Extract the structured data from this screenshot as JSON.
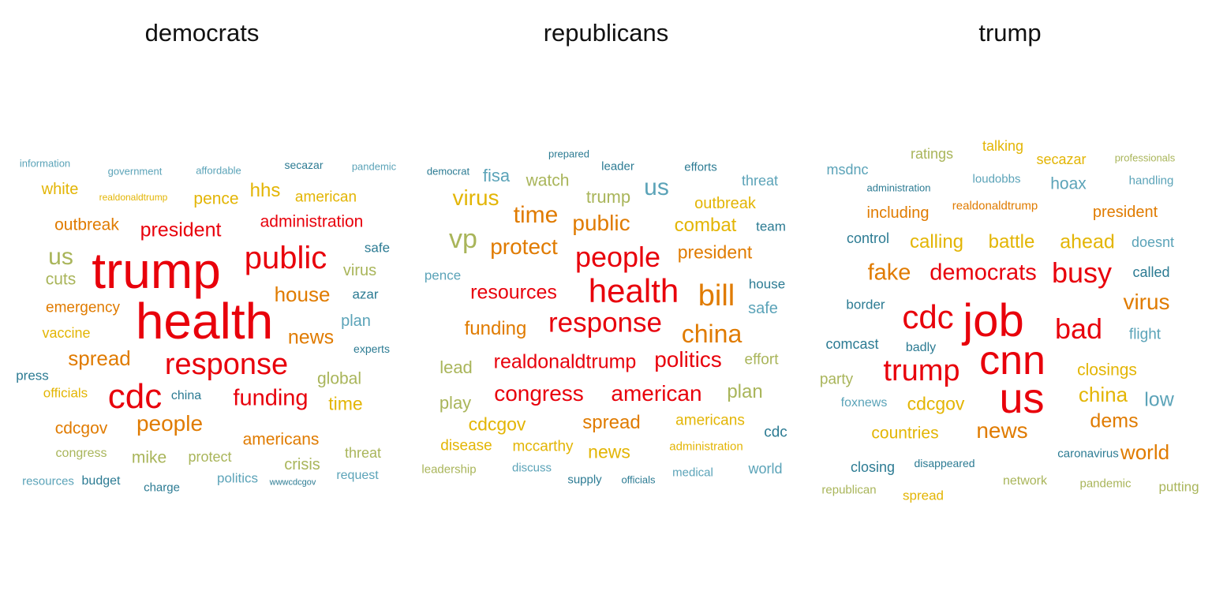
{
  "palette": {
    "red": "#e8000b",
    "orange": "#e07b00",
    "gold": "#e3b505",
    "olive": "#a9b55a",
    "lightblue": "#5ba3b8",
    "teal": "#2c7b93"
  },
  "chart_data": [
    {
      "type": "wordcloud",
      "title": "democrats",
      "words": [
        {
          "text": "information",
          "color": "lightblue"
        },
        {
          "text": "government",
          "color": "lightblue"
        },
        {
          "text": "affordable",
          "color": "lightblue"
        },
        {
          "text": "secazar",
          "color": "teal"
        },
        {
          "text": "pandemic",
          "color": "lightblue"
        },
        {
          "text": "white",
          "color": "gold"
        },
        {
          "text": "realdonaldtrump",
          "color": "gold"
        },
        {
          "text": "pence",
          "color": "gold"
        },
        {
          "text": "hhs",
          "color": "gold"
        },
        {
          "text": "american",
          "color": "gold"
        },
        {
          "text": "outbreak",
          "color": "orange"
        },
        {
          "text": "president",
          "color": "red"
        },
        {
          "text": "administration",
          "color": "red"
        },
        {
          "text": "us",
          "color": "olive"
        },
        {
          "text": "trump",
          "color": "red"
        },
        {
          "text": "public",
          "color": "red"
        },
        {
          "text": "safe",
          "color": "teal"
        },
        {
          "text": "cuts",
          "color": "olive"
        },
        {
          "text": "virus",
          "color": "olive"
        },
        {
          "text": "house",
          "color": "orange"
        },
        {
          "text": "azar",
          "color": "teal"
        },
        {
          "text": "emergency",
          "color": "orange"
        },
        {
          "text": "health",
          "color": "red"
        },
        {
          "text": "plan",
          "color": "lightblue"
        },
        {
          "text": "vaccine",
          "color": "gold"
        },
        {
          "text": "news",
          "color": "orange"
        },
        {
          "text": "experts",
          "color": "teal"
        },
        {
          "text": "spread",
          "color": "orange"
        },
        {
          "text": "response",
          "color": "red"
        },
        {
          "text": "press",
          "color": "teal"
        },
        {
          "text": "global",
          "color": "olive"
        },
        {
          "text": "officials",
          "color": "gold"
        },
        {
          "text": "china",
          "color": "teal"
        },
        {
          "text": "cdc",
          "color": "red"
        },
        {
          "text": "funding",
          "color": "red"
        },
        {
          "text": "time",
          "color": "gold"
        },
        {
          "text": "cdcgov",
          "color": "orange"
        },
        {
          "text": "people",
          "color": "orange"
        },
        {
          "text": "americans",
          "color": "orange"
        },
        {
          "text": "congress",
          "color": "olive"
        },
        {
          "text": "mike",
          "color": "olive"
        },
        {
          "text": "protect",
          "color": "olive"
        },
        {
          "text": "crisis",
          "color": "olive"
        },
        {
          "text": "threat",
          "color": "olive"
        },
        {
          "text": "resources",
          "color": "lightblue"
        },
        {
          "text": "budget",
          "color": "teal"
        },
        {
          "text": "charge",
          "color": "teal"
        },
        {
          "text": "politics",
          "color": "lightblue"
        },
        {
          "text": "wwwcdcgov",
          "color": "teal"
        },
        {
          "text": "request",
          "color": "lightblue"
        }
      ]
    },
    {
      "type": "wordcloud",
      "title": "republicans",
      "words": [
        {
          "text": "prepared",
          "color": "teal"
        },
        {
          "text": "democrat",
          "color": "teal"
        },
        {
          "text": "leader",
          "color": "teal"
        },
        {
          "text": "efforts",
          "color": "teal"
        },
        {
          "text": "fisa",
          "color": "lightblue"
        },
        {
          "text": "watch",
          "color": "olive"
        },
        {
          "text": "threat",
          "color": "lightblue"
        },
        {
          "text": "us",
          "color": "lightblue"
        },
        {
          "text": "virus",
          "color": "gold"
        },
        {
          "text": "trump",
          "color": "olive"
        },
        {
          "text": "outbreak",
          "color": "gold"
        },
        {
          "text": "time",
          "color": "orange"
        },
        {
          "text": "public",
          "color": "orange"
        },
        {
          "text": "combat",
          "color": "gold"
        },
        {
          "text": "team",
          "color": "teal"
        },
        {
          "text": "vp",
          "color": "olive"
        },
        {
          "text": "protect",
          "color": "orange"
        },
        {
          "text": "people",
          "color": "red"
        },
        {
          "text": "president",
          "color": "orange"
        },
        {
          "text": "pence",
          "color": "lightblue"
        },
        {
          "text": "house",
          "color": "teal"
        },
        {
          "text": "resources",
          "color": "red"
        },
        {
          "text": "health",
          "color": "red"
        },
        {
          "text": "bill",
          "color": "orange"
        },
        {
          "text": "safe",
          "color": "lightblue"
        },
        {
          "text": "funding",
          "color": "orange"
        },
        {
          "text": "response",
          "color": "red"
        },
        {
          "text": "china",
          "color": "orange"
        },
        {
          "text": "lead",
          "color": "olive"
        },
        {
          "text": "realdonaldtrump",
          "color": "red"
        },
        {
          "text": "politics",
          "color": "red"
        },
        {
          "text": "effort",
          "color": "olive"
        },
        {
          "text": "play",
          "color": "olive"
        },
        {
          "text": "congress",
          "color": "red"
        },
        {
          "text": "american",
          "color": "red"
        },
        {
          "text": "plan",
          "color": "olive"
        },
        {
          "text": "cdcgov",
          "color": "gold"
        },
        {
          "text": "spread",
          "color": "orange"
        },
        {
          "text": "americans",
          "color": "gold"
        },
        {
          "text": "cdc",
          "color": "teal"
        },
        {
          "text": "disease",
          "color": "gold"
        },
        {
          "text": "mccarthy",
          "color": "gold"
        },
        {
          "text": "news",
          "color": "gold"
        },
        {
          "text": "administration",
          "color": "gold"
        },
        {
          "text": "leadership",
          "color": "olive"
        },
        {
          "text": "discuss",
          "color": "lightblue"
        },
        {
          "text": "supply",
          "color": "teal"
        },
        {
          "text": "officials",
          "color": "teal"
        },
        {
          "text": "medical",
          "color": "lightblue"
        },
        {
          "text": "world",
          "color": "lightblue"
        }
      ]
    },
    {
      "type": "wordcloud",
      "title": "trump",
      "words": [
        {
          "text": "talking",
          "color": "gold"
        },
        {
          "text": "ratings",
          "color": "olive"
        },
        {
          "text": "secazar",
          "color": "gold"
        },
        {
          "text": "professionals",
          "color": "olive"
        },
        {
          "text": "msdnc",
          "color": "lightblue"
        },
        {
          "text": "loudobbs",
          "color": "lightblue"
        },
        {
          "text": "administration",
          "color": "teal"
        },
        {
          "text": "hoax",
          "color": "lightblue"
        },
        {
          "text": "handling",
          "color": "lightblue"
        },
        {
          "text": "including",
          "color": "orange"
        },
        {
          "text": "realdonaldtrump",
          "color": "orange"
        },
        {
          "text": "president",
          "color": "orange"
        },
        {
          "text": "control",
          "color": "teal"
        },
        {
          "text": "calling",
          "color": "gold"
        },
        {
          "text": "battle",
          "color": "gold"
        },
        {
          "text": "ahead",
          "color": "gold"
        },
        {
          "text": "doesnt",
          "color": "lightblue"
        },
        {
          "text": "fake",
          "color": "orange"
        },
        {
          "text": "democrats",
          "color": "red"
        },
        {
          "text": "busy",
          "color": "red"
        },
        {
          "text": "called",
          "color": "teal"
        },
        {
          "text": "border",
          "color": "teal"
        },
        {
          "text": "virus",
          "color": "orange"
        },
        {
          "text": "cdc",
          "color": "red"
        },
        {
          "text": "job",
          "color": "red"
        },
        {
          "text": "bad",
          "color": "red"
        },
        {
          "text": "flight",
          "color": "lightblue"
        },
        {
          "text": "comcast",
          "color": "teal"
        },
        {
          "text": "badly",
          "color": "teal"
        },
        {
          "text": "trump",
          "color": "red"
        },
        {
          "text": "cnn",
          "color": "red"
        },
        {
          "text": "closings",
          "color": "gold"
        },
        {
          "text": "party",
          "color": "olive"
        },
        {
          "text": "us",
          "color": "red"
        },
        {
          "text": "china",
          "color": "gold"
        },
        {
          "text": "low",
          "color": "lightblue"
        },
        {
          "text": "foxnews",
          "color": "lightblue"
        },
        {
          "text": "cdcgov",
          "color": "gold"
        },
        {
          "text": "dems",
          "color": "orange"
        },
        {
          "text": "countries",
          "color": "gold"
        },
        {
          "text": "news",
          "color": "orange"
        },
        {
          "text": "caronavirus",
          "color": "teal"
        },
        {
          "text": "world",
          "color": "orange"
        },
        {
          "text": "closing",
          "color": "teal"
        },
        {
          "text": "disappeared",
          "color": "teal"
        },
        {
          "text": "network",
          "color": "olive"
        },
        {
          "text": "pandemic",
          "color": "olive"
        },
        {
          "text": "putting",
          "color": "olive"
        },
        {
          "text": "republican",
          "color": "olive"
        },
        {
          "text": "spread",
          "color": "gold"
        }
      ]
    }
  ]
}
